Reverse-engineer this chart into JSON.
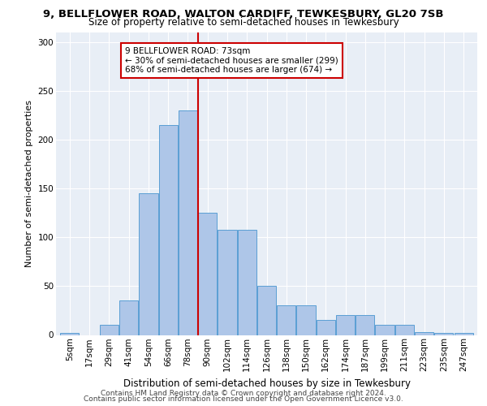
{
  "title1": "9, BELLFLOWER ROAD, WALTON CARDIFF, TEWKESBURY, GL20 7SB",
  "title2": "Size of property relative to semi-detached houses in Tewkesbury",
  "xlabel": "Distribution of semi-detached houses by size in Tewkesbury",
  "ylabel": "Number of semi-detached properties",
  "annotation_line1": "9 BELLFLOWER ROAD: 73sqm",
  "annotation_line2": "← 30% of semi-detached houses are smaller (299)",
  "annotation_line3": "68% of semi-detached houses are larger (674) →",
  "footer1": "Contains HM Land Registry data © Crown copyright and database right 2024.",
  "footer2": "Contains public sector information licensed under the Open Government Licence v3.0.",
  "categories": [
    "5sqm",
    "17sqm",
    "29sqm",
    "41sqm",
    "54sqm",
    "66sqm",
    "78sqm",
    "90sqm",
    "102sqm",
    "114sqm",
    "126sqm",
    "138sqm",
    "150sqm",
    "162sqm",
    "174sqm",
    "187sqm",
    "199sqm",
    "211sqm",
    "223sqm",
    "235sqm",
    "247sqm"
  ],
  "values": [
    2,
    0,
    10,
    35,
    145,
    215,
    230,
    125,
    108,
    108,
    50,
    30,
    30,
    15,
    20,
    20,
    10,
    10,
    3,
    2,
    2
  ],
  "bar_color": "#aec6e8",
  "bar_edge_color": "#5a9fd4",
  "vline_x": 6.5,
  "vline_color": "#cc0000",
  "annotation_box_color": "#cc0000",
  "background_color": "#e8eef6",
  "ylim": [
    0,
    310
  ],
  "yticks": [
    0,
    50,
    100,
    150,
    200,
    250,
    300
  ],
  "title1_fontsize": 9.5,
  "title2_fontsize": 8.5,
  "xlabel_fontsize": 8.5,
  "ylabel_fontsize": 8,
  "tick_fontsize": 7.5,
  "annotation_fontsize": 7.5,
  "footer_fontsize": 6.5
}
